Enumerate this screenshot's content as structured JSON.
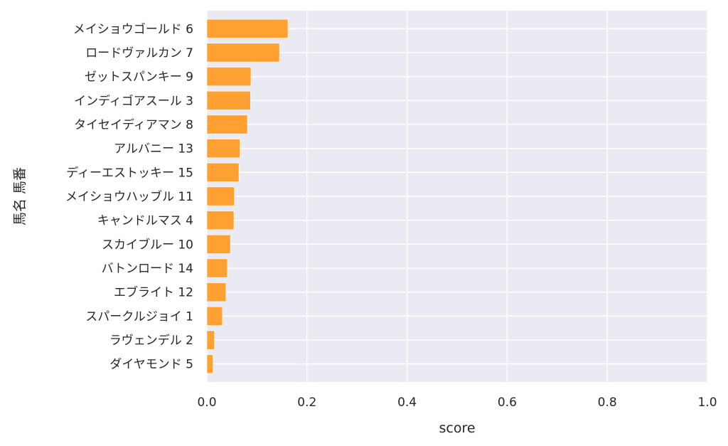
{
  "chart_data": {
    "type": "bar",
    "orientation": "horizontal",
    "categories": [
      "メイショウゴールド 6",
      "ロードヴァルカン 7",
      "ゼットスパンキー 9",
      "インディゴアスール 3",
      "タイセイディアマン 8",
      "アルバニー 13",
      "ディーエストッキー 15",
      "メイショウハッブル 11",
      "キャンドルマス 4",
      "スカイブルー 10",
      "バトンロード 14",
      "エブライト 12",
      "スパークルジョイ 1",
      "ラヴェンデル 2",
      "ダイヤモンド 5"
    ],
    "values": [
      0.162,
      0.145,
      0.088,
      0.087,
      0.081,
      0.066,
      0.064,
      0.055,
      0.054,
      0.047,
      0.041,
      0.038,
      0.031,
      0.015,
      0.012
    ],
    "xlabel": "score",
    "ylabel": "馬名 馬番",
    "xlim": [
      0,
      1
    ],
    "xticks": [
      "0.0",
      "0.2",
      "0.4",
      "0.6",
      "0.8",
      "1.0"
    ],
    "grid": true,
    "colors": {
      "bar": "#ffa033",
      "plot_background": "#eaeaf2",
      "grid": "#ffffff",
      "text": "#262626"
    }
  }
}
